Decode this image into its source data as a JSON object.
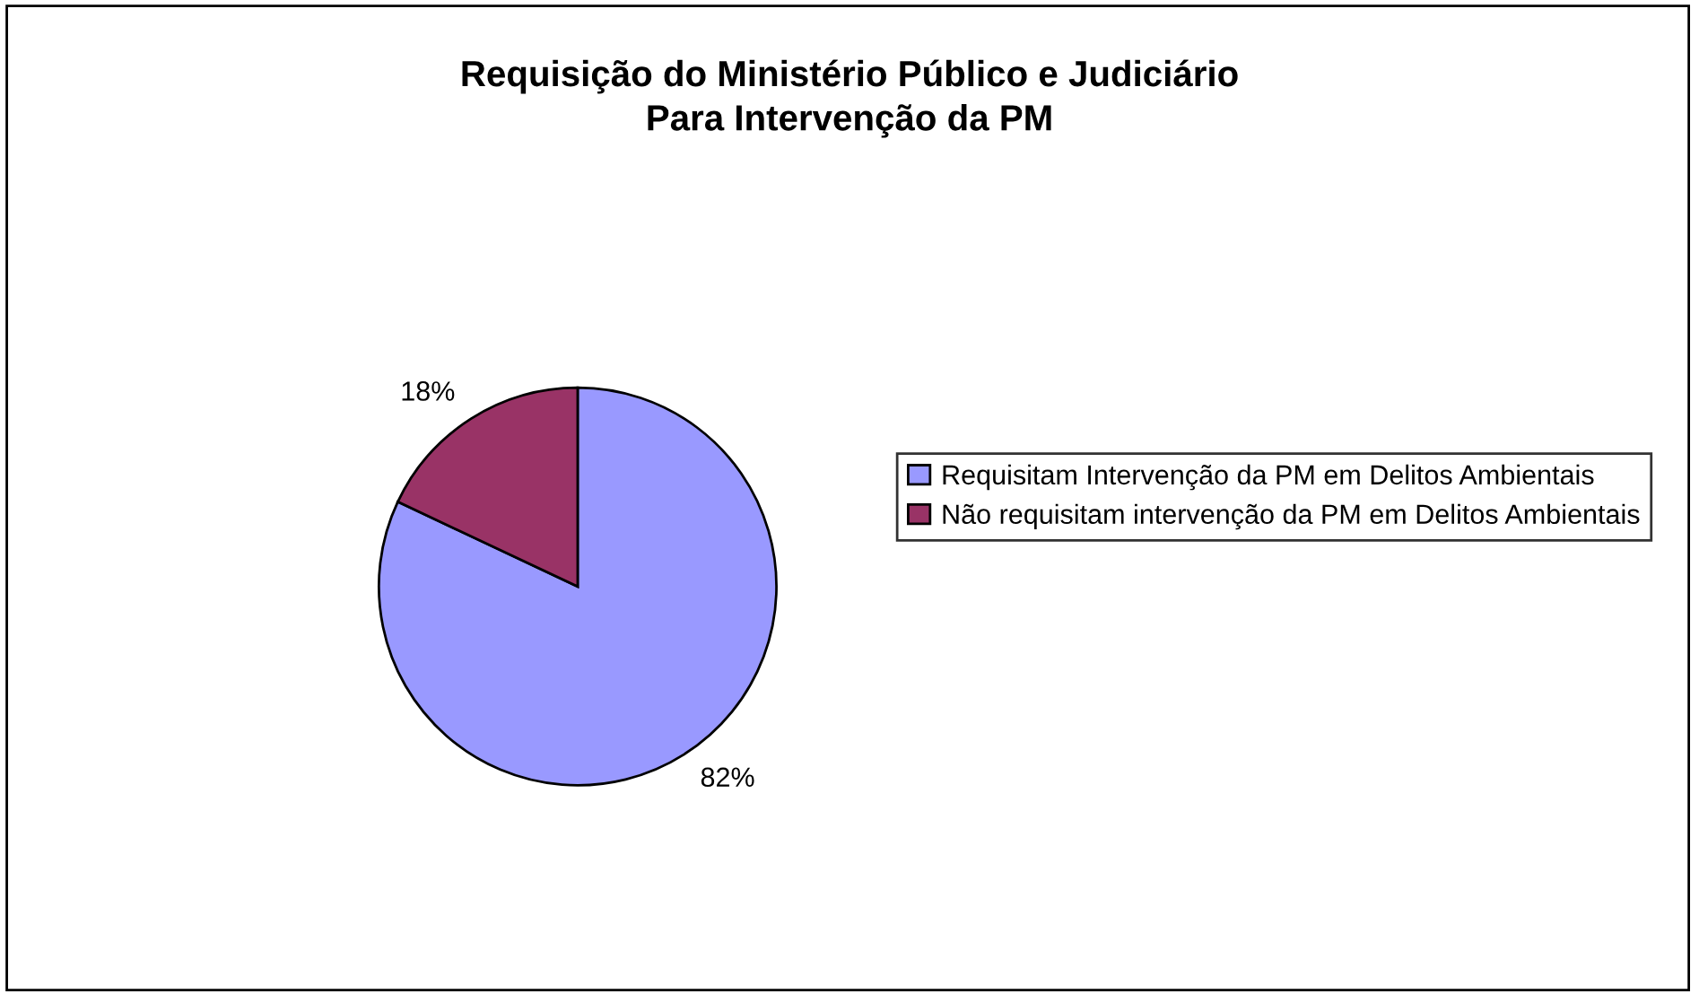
{
  "chart_data": {
    "type": "pie",
    "title": "Requisição do Ministério Público e Judiciário\nPara Intervenção da PM",
    "categories": [
      "Requisitam Intervenção da PM em Delitos Ambientais",
      "Não requisitam intervenção da PM em Delitos Ambientais"
    ],
    "values": [
      82,
      18
    ],
    "colors": [
      "#9999ff",
      "#993366"
    ],
    "value_labels": [
      "82%",
      "18%"
    ],
    "legend": "right"
  }
}
